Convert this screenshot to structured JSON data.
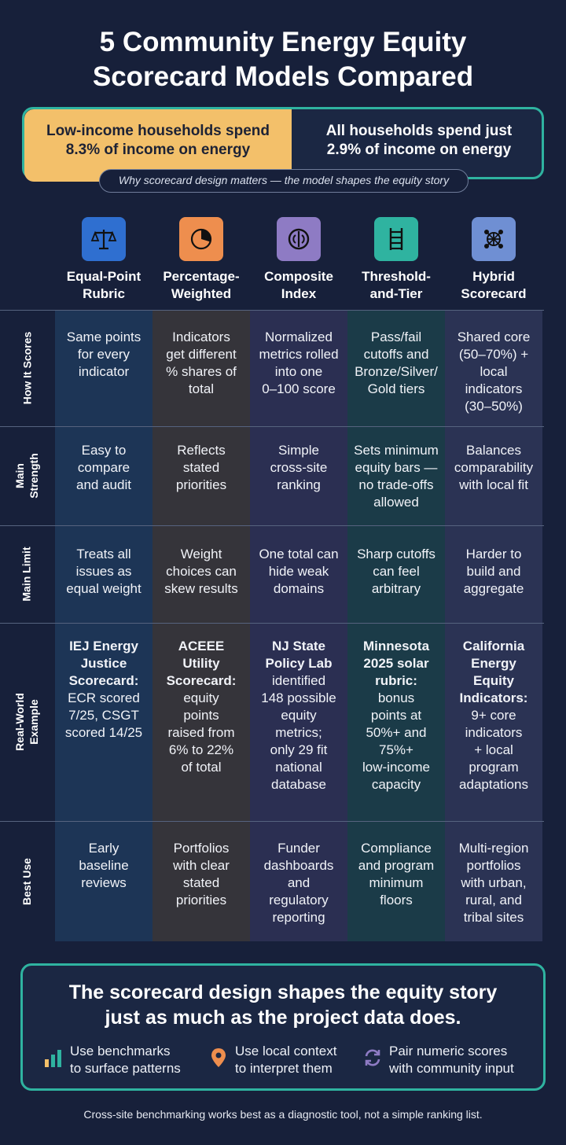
{
  "title": {
    "line1": "5 Community Energy Equity",
    "line2": "Scorecard Models Compared"
  },
  "stats": {
    "low_income_line1": "Low-income households spend",
    "low_income_line2": "8.3% of income on energy",
    "all_line1": "All households spend just",
    "all_line2": "2.9% of income on energy",
    "caption": "Why scorecard design matters — the model shapes the equity story"
  },
  "models": [
    {
      "name_line1": "Equal-Point",
      "name_line2": "Rubric",
      "icon": "scales-icon",
      "color": "#2f6fd0",
      "band": "#1d3556"
    },
    {
      "name_line1": "Percentage-",
      "name_line2": "Weighted",
      "icon": "pie-chart-icon",
      "color": "#ee8e4e",
      "band": "#35343a"
    },
    {
      "name_line1": "Composite",
      "name_line2": "Index",
      "icon": "gauge-icon",
      "color": "#8e7bc4",
      "band": "#2b2f52"
    },
    {
      "name_line1": "Threshold-",
      "name_line2": "and-Tier",
      "icon": "ladder-icon",
      "color": "#2fb3a0",
      "band": "#1b3b48"
    },
    {
      "name_line1": "Hybrid",
      "name_line2": "Scorecard",
      "icon": "network-icon",
      "color": "#6f8fd3",
      "band": "#2b3354"
    }
  ],
  "rows": [
    {
      "label": [
        "How It Scores"
      ]
    },
    {
      "label": [
        "Main",
        "Strength"
      ]
    },
    {
      "label": [
        "Main Limit"
      ]
    },
    {
      "label": [
        "Real-World",
        "Example"
      ]
    },
    {
      "label": [
        "Best Use"
      ]
    }
  ],
  "cells": {
    "how": [
      [
        "Same points",
        "for every",
        "indicator"
      ],
      [
        "Indicators",
        "get different",
        "% shares of",
        "total"
      ],
      [
        "Normalized",
        "metrics rolled",
        "into one",
        "0–100 score"
      ],
      [
        "Pass/fail",
        "cutoffs and",
        "Bronze/Silver/",
        "Gold tiers"
      ],
      [
        "Shared core",
        "(50–70%) +",
        "local",
        "indicators",
        "(30–50%)"
      ]
    ],
    "strength": [
      [
        "Easy to",
        "compare",
        "and audit"
      ],
      [
        "Reflects",
        "stated",
        "priorities"
      ],
      [
        "Simple",
        "cross-site",
        "ranking"
      ],
      [
        "Sets minimum",
        "equity bars —",
        "no trade-offs",
        "allowed"
      ],
      [
        "Balances",
        "comparability",
        "with local fit"
      ]
    ],
    "limit": [
      [
        "Treats all",
        "issues as",
        "equal weight"
      ],
      [
        "Weight",
        "choices can",
        "skew results"
      ],
      [
        "One total can",
        "hide weak",
        "domains"
      ],
      [
        "Sharp cutoffs",
        "can feel",
        "arbitrary"
      ],
      [
        "Harder to",
        "build and",
        "aggregate"
      ]
    ],
    "example": [
      {
        "bold": [
          "IEJ Energy",
          "Justice",
          "Scorecard:"
        ],
        "text": [
          "ECR scored",
          "7/25, CSGT",
          "scored 14/25"
        ]
      },
      {
        "bold": [
          "ACEEE",
          "Utility",
          "Scorecard:"
        ],
        "text": [
          "equity",
          "points",
          "raised from",
          "6% to 22%",
          "of total"
        ]
      },
      {
        "bold": [
          "NJ State",
          "Policy Lab"
        ],
        "text": [
          "identified",
          "148 possible",
          "equity",
          "metrics;",
          "only 29 fit",
          "national",
          "database"
        ]
      },
      {
        "bold": [
          "Minnesota",
          "2025 solar",
          "rubric:"
        ],
        "text": [
          "bonus",
          "points at",
          "50%+ and",
          "75%+",
          "low-income",
          "capacity"
        ]
      },
      {
        "bold": [
          "California",
          "Energy",
          "Equity",
          "Indicators:"
        ],
        "text": [
          "9+ core",
          "indicators",
          "+ local",
          "program",
          "adaptations"
        ]
      }
    ],
    "best": [
      [
        "Early",
        "baseline",
        "reviews"
      ],
      [
        "Portfolios",
        "with clear",
        "stated",
        "priorities"
      ],
      [
        "Funder",
        "dashboards",
        "and",
        "regulatory",
        "reporting"
      ],
      [
        "Compliance",
        "and program",
        "minimum",
        "floors"
      ],
      [
        "Multi-region",
        "portfolios",
        "with urban,",
        "rural, and",
        "tribal sites"
      ]
    ]
  },
  "takeaway": {
    "line1": "The scorecard design shapes the equity story",
    "line2": "just as much as the project data does.",
    "tips": [
      {
        "icon": "bar-chart-icon",
        "line1": "Use benchmarks",
        "line2": "to surface patterns"
      },
      {
        "icon": "location-pin-icon",
        "line1": "Use local context",
        "line2": "to interpret them"
      },
      {
        "icon": "refresh-icon",
        "line1": "Pair numeric scores",
        "line2": "with community input"
      }
    ]
  },
  "footer": "Cross-site benchmarking works best as a diagnostic tool, not a simple ranking list.",
  "colors": {
    "background": "#17203a",
    "accent_teal": "#2fb3a0",
    "highlight_gold": "#f3c06a"
  }
}
